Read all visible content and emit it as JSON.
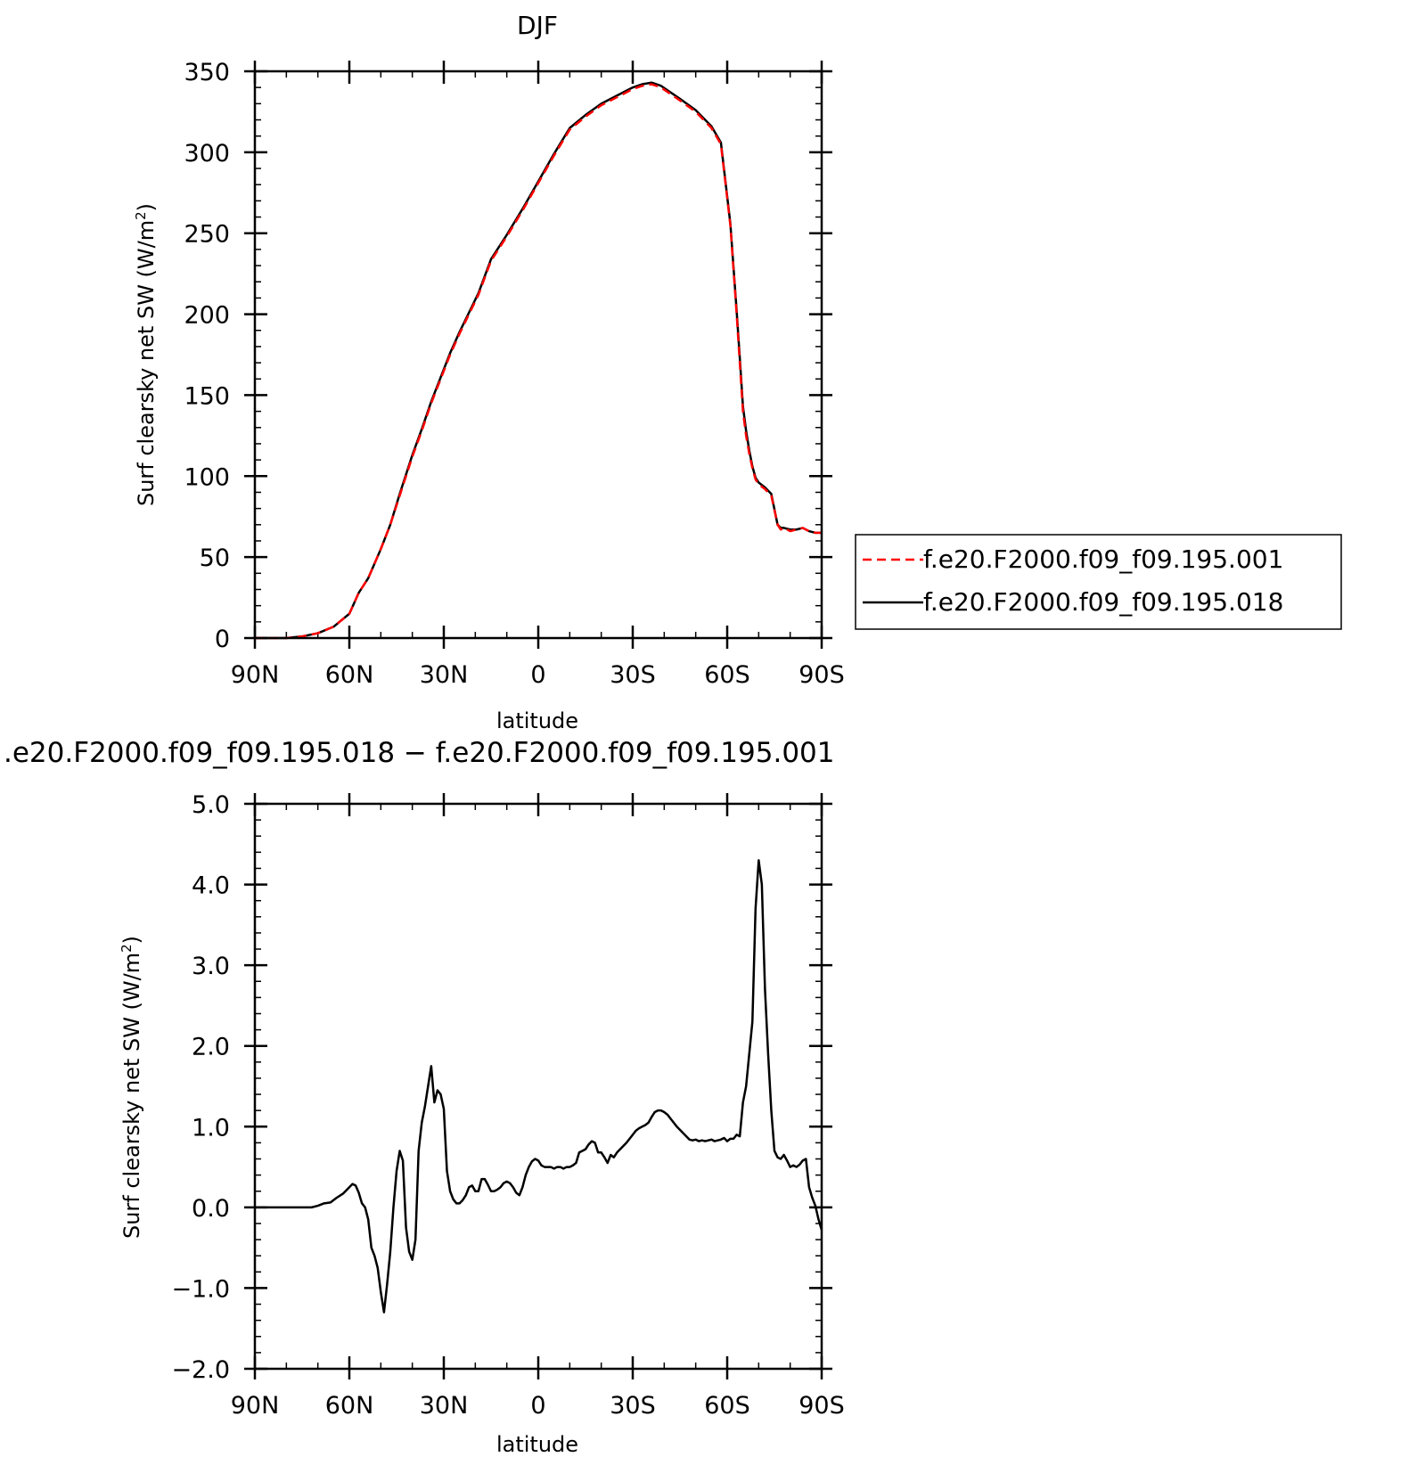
{
  "chart_data": [
    {
      "type": "line",
      "title": "DJF",
      "xlabel": "latitude",
      "ylabel": "Surf clearsky net SW (W/m²)",
      "ylabel_parts": {
        "text": "Surf clearsky net SW (W/m",
        "sup": "2",
        "close": ")"
      },
      "xlim": [
        90,
        -90
      ],
      "ylim": [
        0,
        350
      ],
      "xticks": [
        90,
        60,
        30,
        0,
        -30,
        -60,
        -90
      ],
      "xtick_labels": [
        "90N",
        "60N",
        "30N",
        "0",
        "30S",
        "60S",
        "90S"
      ],
      "yticks": [
        0,
        50,
        100,
        150,
        200,
        250,
        300,
        350
      ],
      "ytick_labels": [
        "0",
        "50",
        "100",
        "150",
        "200",
        "250",
        "300",
        "350"
      ],
      "legend_position": "right, outside plot",
      "series": [
        {
          "name": "f.e20.F2000.f09_f09.195.001",
          "color": "#ff0000",
          "style": "dashed",
          "x": [
            90,
            80,
            75,
            70,
            65,
            60,
            57,
            54,
            50,
            47,
            44,
            40,
            37,
            34,
            31,
            28,
            25,
            22,
            19,
            15,
            10,
            5,
            0,
            -5,
            -10,
            -15,
            -20,
            -25,
            -30,
            -33,
            -36,
            -39,
            -42,
            -45,
            -50,
            -55,
            -58,
            -61,
            -63,
            -64,
            -65,
            -66,
            -67,
            -68,
            -69,
            -70,
            -72,
            -74,
            -76,
            -77,
            -78,
            -80,
            -82,
            -84,
            -86,
            -88,
            -90
          ],
          "y": [
            0,
            0,
            1,
            3,
            7,
            15,
            28,
            37,
            55,
            70,
            88,
            112,
            128,
            145,
            160,
            175,
            188,
            200,
            212,
            233,
            248,
            264,
            281,
            298,
            314,
            322,
            329,
            334,
            339,
            341,
            342,
            340,
            336,
            332,
            325,
            315,
            305,
            255,
            200,
            170,
            140,
            125,
            114,
            105,
            98,
            95,
            92,
            88,
            70,
            67,
            68,
            66,
            67,
            68,
            66,
            65,
            65
          ]
        },
        {
          "name": "f.e20.F2000.f09_f09.195.018",
          "color": "#000000",
          "style": "solid",
          "x": [
            90,
            80,
            75,
            70,
            65,
            60,
            57,
            54,
            50,
            47,
            44,
            40,
            37,
            34,
            31,
            28,
            25,
            22,
            19,
            15,
            10,
            5,
            0,
            -5,
            -10,
            -15,
            -20,
            -25,
            -30,
            -33,
            -36,
            -39,
            -42,
            -45,
            -50,
            -55,
            -58,
            -61,
            -63,
            -64,
            -65,
            -66,
            -67,
            -68,
            -69,
            -70,
            -72,
            -74,
            -76,
            -77,
            -78,
            -80,
            -82,
            -84,
            -86,
            -88,
            -90
          ],
          "y": [
            0,
            0,
            1,
            3,
            7,
            15,
            28,
            37,
            55,
            70,
            89,
            113,
            129,
            146,
            161,
            176,
            189,
            201,
            213,
            234,
            249,
            265,
            282,
            299,
            315,
            323,
            330,
            335,
            340,
            342,
            343,
            341,
            337,
            333,
            326,
            316,
            306,
            256,
            202,
            173,
            143,
            128,
            116,
            106,
            99,
            96,
            93,
            89,
            70,
            68,
            68,
            67,
            67,
            68,
            66,
            65,
            65
          ]
        }
      ]
    },
    {
      "type": "line",
      "title": ".e20.F2000.f09_f09.195.018 − f.e20.F2000.f09_f09.195.001",
      "xlabel": "latitude",
      "ylabel": "Surf clearsky net SW (W/m²)",
      "ylabel_parts": {
        "text": "Surf clearsky net SW (W/m",
        "sup": "2",
        "close": ")"
      },
      "xlim": [
        90,
        -90
      ],
      "ylim": [
        -2.0,
        5.0
      ],
      "xticks": [
        90,
        60,
        30,
        0,
        -30,
        -60,
        -90
      ],
      "xtick_labels": [
        "90N",
        "60N",
        "30N",
        "0",
        "30S",
        "60S",
        "90S"
      ],
      "yticks": [
        -2,
        -1,
        0,
        1,
        2,
        3,
        4,
        5
      ],
      "ytick_labels": [
        "−2.0",
        "−1.0",
        "0.0",
        "1.0",
        "2.0",
        "3.0",
        "4.0",
        "5.0"
      ],
      "series": [
        {
          "color": "#000000",
          "style": "solid",
          "x": [
            90,
            72,
            70,
            68,
            66,
            64,
            62,
            60,
            59,
            58,
            57,
            56,
            55,
            54,
            53,
            52,
            51,
            50,
            49,
            48,
            47,
            46,
            45,
            44,
            43,
            42,
            41,
            40,
            39,
            38,
            37,
            36,
            35,
            34,
            33,
            32,
            31,
            30,
            29,
            28,
            27,
            26,
            25,
            24,
            23,
            22,
            21,
            20,
            19,
            18,
            17,
            16,
            15,
            14,
            13,
            12,
            11,
            10,
            9,
            8,
            7,
            6,
            5,
            4,
            3,
            2,
            1,
            0,
            -1,
            -2,
            -3,
            -4,
            -5,
            -6,
            -7,
            -8,
            -9,
            -10,
            -11,
            -12,
            -13,
            -14,
            -15,
            -16,
            -17,
            -18,
            -19,
            -20,
            -21,
            -22,
            -23,
            -24,
            -25,
            -26,
            -27,
            -28,
            -29,
            -30,
            -31,
            -32,
            -33,
            -34,
            -35,
            -36,
            -37,
            -38,
            -39,
            -40,
            -41,
            -42,
            -43,
            -44,
            -45,
            -46,
            -47,
            -48,
            -49,
            -50,
            -51,
            -52,
            -53,
            -54,
            -55,
            -56,
            -57,
            -58,
            -59,
            -60,
            -61,
            -62,
            -63,
            -64,
            -65,
            -66,
            -67,
            -68,
            -69,
            -70,
            -71,
            -72,
            -73,
            -74,
            -75,
            -76,
            -77,
            -78,
            -79,
            -80,
            -81,
            -82,
            -83,
            -84,
            -85,
            -86,
            -87,
            -88,
            -89,
            -90
          ],
          "y": [
            0,
            0,
            0.02,
            0.05,
            0.06,
            0.12,
            0.17,
            0.25,
            0.29,
            0.27,
            0.18,
            0.05,
            0.0,
            -0.15,
            -0.5,
            -0.6,
            -0.75,
            -1.05,
            -1.3,
            -0.95,
            -0.55,
            0.0,
            0.45,
            0.7,
            0.58,
            -0.25,
            -0.55,
            -0.65,
            -0.4,
            0.7,
            1.05,
            1.25,
            1.5,
            1.75,
            1.3,
            1.45,
            1.4,
            1.22,
            0.45,
            0.2,
            0.1,
            0.05,
            0.05,
            0.09,
            0.15,
            0.25,
            0.27,
            0.2,
            0.2,
            0.35,
            0.35,
            0.28,
            0.2,
            0.2,
            0.22,
            0.25,
            0.3,
            0.32,
            0.3,
            0.25,
            0.18,
            0.15,
            0.25,
            0.4,
            0.5,
            0.57,
            0.6,
            0.58,
            0.52,
            0.5,
            0.5,
            0.5,
            0.48,
            0.5,
            0.5,
            0.48,
            0.5,
            0.5,
            0.52,
            0.55,
            0.68,
            0.7,
            0.72,
            0.78,
            0.82,
            0.8,
            0.68,
            0.68,
            0.62,
            0.55,
            0.65,
            0.62,
            0.68,
            0.72,
            0.76,
            0.8,
            0.85,
            0.9,
            0.95,
            0.98,
            1.0,
            1.02,
            1.05,
            1.12,
            1.18,
            1.2,
            1.2,
            1.18,
            1.15,
            1.1,
            1.05,
            1.0,
            0.96,
            0.92,
            0.88,
            0.84,
            0.83,
            0.84,
            0.82,
            0.83,
            0.82,
            0.83,
            0.84,
            0.82,
            0.83,
            0.84,
            0.86,
            0.82,
            0.85,
            0.85,
            0.9,
            0.88,
            1.3,
            1.5,
            1.9,
            2.3,
            3.7,
            4.3,
            4.0,
            2.7,
            1.9,
            1.2,
            0.7,
            0.62,
            0.6,
            0.65,
            0.58,
            0.5,
            0.52,
            0.5,
            0.53,
            0.58,
            0.6,
            0.25,
            0.12,
            0.02,
            -0.15,
            -0.28
          ]
        }
      ]
    }
  ]
}
